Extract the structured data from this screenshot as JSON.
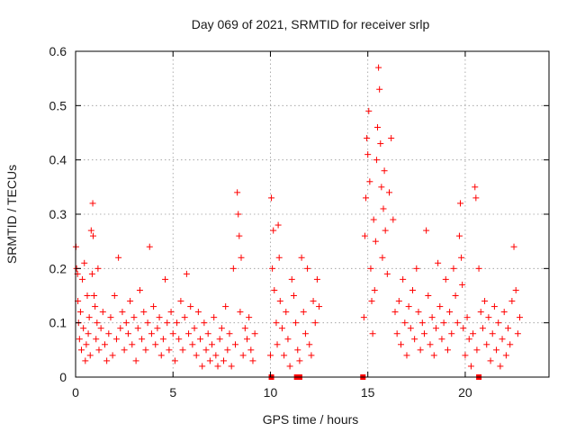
{
  "chart_data": {
    "type": "scatter",
    "title": "Day 069 of 2021, SRMTID for receiver srlp",
    "xlabel": "GPS time / hours",
    "ylabel": "SRMTID / TECUs",
    "xlim": [
      0,
      24.3
    ],
    "ylim": [
      0,
      0.6
    ],
    "xticks": [
      0,
      5,
      10,
      15,
      20
    ],
    "xtick_labels": [
      "0",
      "5",
      "10",
      "15",
      "20"
    ],
    "yticks": [
      0,
      0.1,
      0.2,
      0.3,
      0.4,
      0.5,
      0.6
    ],
    "ytick_labels": [
      "0",
      "0.1",
      "0.2",
      "0.3",
      "0.4",
      "0.5",
      "0.6"
    ],
    "grid": true,
    "marker": "plus",
    "color": "#ff0000",
    "series": [
      {
        "name": "SRMTID",
        "points": [
          [
            0.02,
            0.24
          ],
          [
            0.05,
            0.2
          ],
          [
            0.1,
            0.19
          ],
          [
            0.12,
            0.14
          ],
          [
            0.15,
            0.1
          ],
          [
            0.2,
            0.07
          ],
          [
            0.25,
            0.12
          ],
          [
            0.3,
            0.05
          ],
          [
            0.35,
            0.18
          ],
          [
            0.4,
            0.09
          ],
          [
            0.45,
            0.21
          ],
          [
            0.5,
            0.03
          ],
          [
            0.55,
            0.06
          ],
          [
            0.6,
            0.15
          ],
          [
            0.65,
            0.08
          ],
          [
            0.7,
            0.11
          ],
          [
            0.75,
            0.04
          ],
          [
            0.8,
            0.27
          ],
          [
            0.85,
            0.19
          ],
          [
            0.88,
            0.32
          ],
          [
            0.9,
            0.26
          ],
          [
            0.95,
            0.15
          ],
          [
            1.0,
            0.13
          ],
          [
            1.05,
            0.07
          ],
          [
            1.1,
            0.1
          ],
          [
            1.15,
            0.2
          ],
          [
            1.2,
            0.05
          ],
          [
            1.3,
            0.09
          ],
          [
            1.4,
            0.12
          ],
          [
            1.5,
            0.06
          ],
          [
            1.6,
            0.03
          ],
          [
            1.7,
            0.08
          ],
          [
            1.8,
            0.11
          ],
          [
            1.9,
            0.04
          ],
          [
            2.0,
            0.15
          ],
          [
            2.1,
            0.07
          ],
          [
            2.2,
            0.22
          ],
          [
            2.3,
            0.09
          ],
          [
            2.4,
            0.12
          ],
          [
            2.5,
            0.05
          ],
          [
            2.6,
            0.1
          ],
          [
            2.7,
            0.08
          ],
          [
            2.8,
            0.14
          ],
          [
            2.9,
            0.06
          ],
          [
            3.0,
            0.11
          ],
          [
            3.1,
            0.03
          ],
          [
            3.2,
            0.09
          ],
          [
            3.3,
            0.16
          ],
          [
            3.4,
            0.07
          ],
          [
            3.5,
            0.12
          ],
          [
            3.6,
            0.05
          ],
          [
            3.7,
            0.1
          ],
          [
            3.8,
            0.24
          ],
          [
            3.9,
            0.08
          ],
          [
            4.0,
            0.13
          ],
          [
            4.1,
            0.06
          ],
          [
            4.2,
            0.09
          ],
          [
            4.3,
            0.11
          ],
          [
            4.4,
            0.04
          ],
          [
            4.5,
            0.07
          ],
          [
            4.6,
            0.18
          ],
          [
            4.7,
            0.1
          ],
          [
            4.8,
            0.05
          ],
          [
            4.9,
            0.12
          ],
          [
            5.0,
            0.08
          ],
          [
            5.1,
            0.03
          ],
          [
            5.2,
            0.1
          ],
          [
            5.3,
            0.07
          ],
          [
            5.4,
            0.14
          ],
          [
            5.5,
            0.05
          ],
          [
            5.6,
            0.11
          ],
          [
            5.7,
            0.19
          ],
          [
            5.8,
            0.08
          ],
          [
            5.9,
            0.13
          ],
          [
            6.0,
            0.06
          ],
          [
            6.1,
            0.09
          ],
          [
            6.2,
            0.04
          ],
          [
            6.3,
            0.12
          ],
          [
            6.4,
            0.07
          ],
          [
            6.5,
            0.02
          ],
          [
            6.6,
            0.1
          ],
          [
            6.7,
            0.05
          ],
          [
            6.8,
            0.08
          ],
          [
            6.9,
            0.03
          ],
          [
            7.0,
            0.06
          ],
          [
            7.1,
            0.11
          ],
          [
            7.2,
            0.04
          ],
          [
            7.3,
            0.02
          ],
          [
            7.4,
            0.07
          ],
          [
            7.5,
            0.09
          ],
          [
            7.6,
            0.03
          ],
          [
            7.7,
            0.13
          ],
          [
            7.8,
            0.05
          ],
          [
            7.9,
            0.08
          ],
          [
            8.0,
            0.02
          ],
          [
            8.1,
            0.2
          ],
          [
            8.2,
            0.06
          ],
          [
            8.3,
            0.34
          ],
          [
            8.35,
            0.3
          ],
          [
            8.4,
            0.26
          ],
          [
            8.45,
            0.12
          ],
          [
            8.5,
            0.22
          ],
          [
            8.6,
            0.04
          ],
          [
            8.7,
            0.09
          ],
          [
            8.8,
            0.07
          ],
          [
            8.9,
            0.11
          ],
          [
            9.0,
            0.05
          ],
          [
            9.1,
            0.03
          ],
          [
            9.2,
            0.08
          ],
          [
            10.0,
            0.04
          ],
          [
            10.05,
            0.33
          ],
          [
            10.1,
            0.2
          ],
          [
            10.15,
            0.27
          ],
          [
            10.2,
            0.16
          ],
          [
            10.3,
            0.1
          ],
          [
            10.35,
            0.06
          ],
          [
            10.4,
            0.28
          ],
          [
            10.45,
            0.22
          ],
          [
            10.5,
            0.14
          ],
          [
            10.6,
            0.09
          ],
          [
            10.7,
            0.04
          ],
          [
            10.8,
            0.12
          ],
          [
            10.9,
            0.07
          ],
          [
            11.0,
            0.02
          ],
          [
            11.1,
            0.18
          ],
          [
            11.2,
            0.15
          ],
          [
            11.3,
            0.1
          ],
          [
            11.4,
            0.05
          ],
          [
            11.5,
            0.03
          ],
          [
            11.6,
            0.22
          ],
          [
            11.7,
            0.12
          ],
          [
            11.8,
            0.08
          ],
          [
            11.9,
            0.2
          ],
          [
            12.0,
            0.06
          ],
          [
            12.1,
            0.04
          ],
          [
            12.2,
            0.14
          ],
          [
            12.3,
            0.1
          ],
          [
            12.4,
            0.18
          ],
          [
            12.5,
            0.13
          ],
          [
            14.8,
            0.11
          ],
          [
            14.85,
            0.26
          ],
          [
            14.9,
            0.33
          ],
          [
            14.95,
            0.44
          ],
          [
            15.0,
            0.41
          ],
          [
            15.05,
            0.49
          ],
          [
            15.1,
            0.36
          ],
          [
            15.15,
            0.2
          ],
          [
            15.2,
            0.14
          ],
          [
            15.25,
            0.08
          ],
          [
            15.3,
            0.29
          ],
          [
            15.35,
            0.16
          ],
          [
            15.4,
            0.25
          ],
          [
            15.45,
            0.4
          ],
          [
            15.5,
            0.46
          ],
          [
            15.55,
            0.57
          ],
          [
            15.6,
            0.53
          ],
          [
            15.65,
            0.43
          ],
          [
            15.7,
            0.35
          ],
          [
            15.75,
            0.22
          ],
          [
            15.8,
            0.31
          ],
          [
            15.85,
            0.38
          ],
          [
            15.9,
            0.27
          ],
          [
            16.0,
            0.19
          ],
          [
            16.1,
            0.34
          ],
          [
            16.2,
            0.44
          ],
          [
            16.3,
            0.29
          ],
          [
            16.4,
            0.12
          ],
          [
            16.5,
            0.08
          ],
          [
            16.6,
            0.14
          ],
          [
            16.7,
            0.06
          ],
          [
            16.8,
            0.18
          ],
          [
            16.9,
            0.1
          ],
          [
            17.0,
            0.04
          ],
          [
            17.1,
            0.13
          ],
          [
            17.2,
            0.09
          ],
          [
            17.3,
            0.16
          ],
          [
            17.4,
            0.07
          ],
          [
            17.5,
            0.2
          ],
          [
            17.6,
            0.12
          ],
          [
            17.7,
            0.05
          ],
          [
            17.8,
            0.1
          ],
          [
            17.9,
            0.08
          ],
          [
            18.0,
            0.27
          ],
          [
            18.1,
            0.15
          ],
          [
            18.2,
            0.06
          ],
          [
            18.3,
            0.11
          ],
          [
            18.4,
            0.04
          ],
          [
            18.5,
            0.09
          ],
          [
            18.6,
            0.21
          ],
          [
            18.7,
            0.13
          ],
          [
            18.8,
            0.07
          ],
          [
            18.9,
            0.1
          ],
          [
            19.0,
            0.18
          ],
          [
            19.1,
            0.05
          ],
          [
            19.2,
            0.12
          ],
          [
            19.3,
            0.08
          ],
          [
            19.4,
            0.2
          ],
          [
            19.5,
            0.15
          ],
          [
            19.6,
            0.1
          ],
          [
            19.7,
            0.26
          ],
          [
            19.75,
            0.32
          ],
          [
            19.8,
            0.22
          ],
          [
            19.85,
            0.17
          ],
          [
            19.9,
            0.09
          ],
          [
            20.0,
            0.04
          ],
          [
            20.1,
            0.11
          ],
          [
            20.2,
            0.07
          ],
          [
            20.3,
            0.02
          ],
          [
            20.4,
            0.08
          ],
          [
            20.5,
            0.35
          ],
          [
            20.55,
            0.33
          ],
          [
            20.6,
            0.05
          ],
          [
            20.7,
            0.2
          ],
          [
            20.8,
            0.12
          ],
          [
            20.9,
            0.09
          ],
          [
            21.0,
            0.14
          ],
          [
            21.1,
            0.06
          ],
          [
            21.2,
            0.11
          ],
          [
            21.3,
            0.03
          ],
          [
            21.4,
            0.08
          ],
          [
            21.5,
            0.13
          ],
          [
            21.6,
            0.05
          ],
          [
            21.7,
            0.1
          ],
          [
            21.8,
            0.02
          ],
          [
            21.9,
            0.07
          ],
          [
            22.0,
            0.12
          ],
          [
            22.1,
            0.04
          ],
          [
            22.2,
            0.09
          ],
          [
            22.3,
            0.06
          ],
          [
            22.4,
            0.14
          ],
          [
            22.5,
            0.24
          ],
          [
            22.6,
            0.16
          ],
          [
            22.7,
            0.08
          ],
          [
            22.8,
            0.11
          ]
        ]
      }
    ],
    "zero_markers_x": [
      10.05,
      11.35,
      11.5,
      14.75,
      20.7
    ]
  }
}
